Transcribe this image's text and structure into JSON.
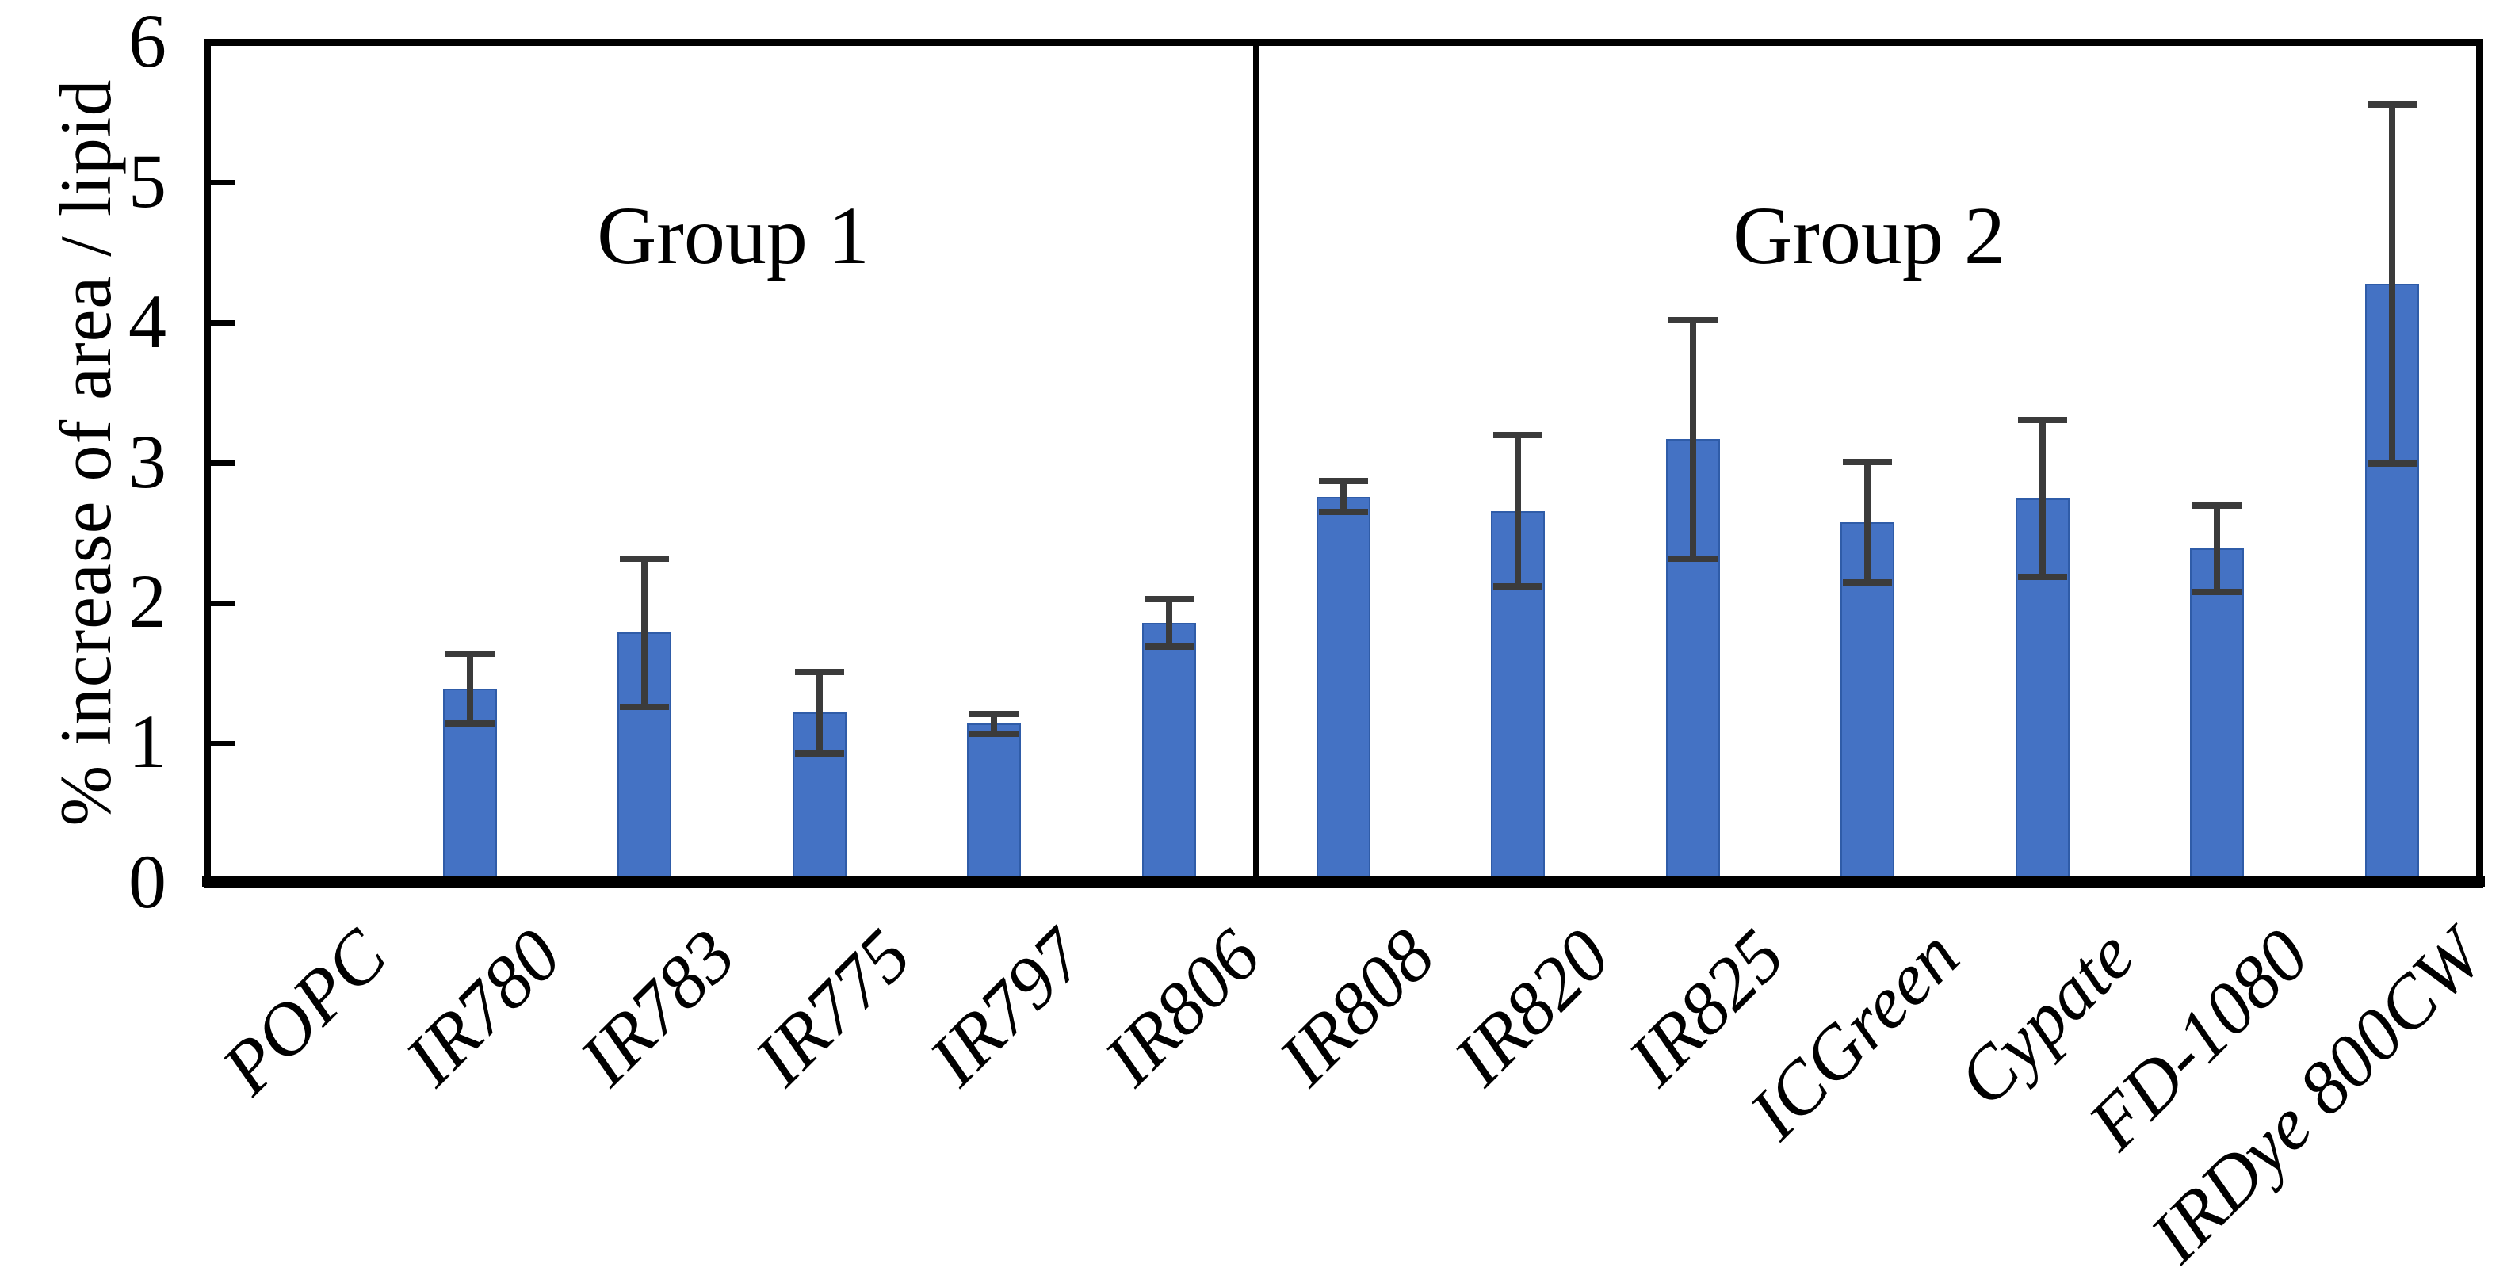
{
  "chart_data": {
    "type": "bar",
    "title": "",
    "ylabel": "% increase of area / lipid",
    "xlabel": "",
    "ylim": [
      0,
      6
    ],
    "yticks": [
      0,
      1,
      2,
      3,
      4,
      5,
      6
    ],
    "grid": false,
    "legend_position": "none",
    "bar_color": "#4472C4",
    "bar_edge_color": "#2F5CA8",
    "error_bar_color": "#3B3B3B",
    "axis_color": "#000000",
    "categories": [
      "POPC",
      "IR780",
      "IR783",
      "IR775",
      "IR797",
      "IR806",
      "IR808",
      "IR820",
      "IR825",
      "ICGreen",
      "Cypate",
      "FD-1080",
      "IRDye 800CW"
    ],
    "values": [
      0,
      1.39,
      1.79,
      1.22,
      1.14,
      1.86,
      2.76,
      2.66,
      3.17,
      2.58,
      2.75,
      2.39,
      4.28
    ],
    "errors": [
      0,
      0.25,
      0.53,
      0.29,
      0.07,
      0.17,
      0.11,
      0.54,
      0.85,
      0.43,
      0.56,
      0.31,
      1.28
    ],
    "groups": [
      {
        "label": "Group 1",
        "first_category": "POPC",
        "last_category": "IR806"
      },
      {
        "label": "Group 2",
        "first_category": "IR808",
        "last_category": "IRDye 800CW"
      }
    ],
    "divider_after_category_index": 6
  }
}
